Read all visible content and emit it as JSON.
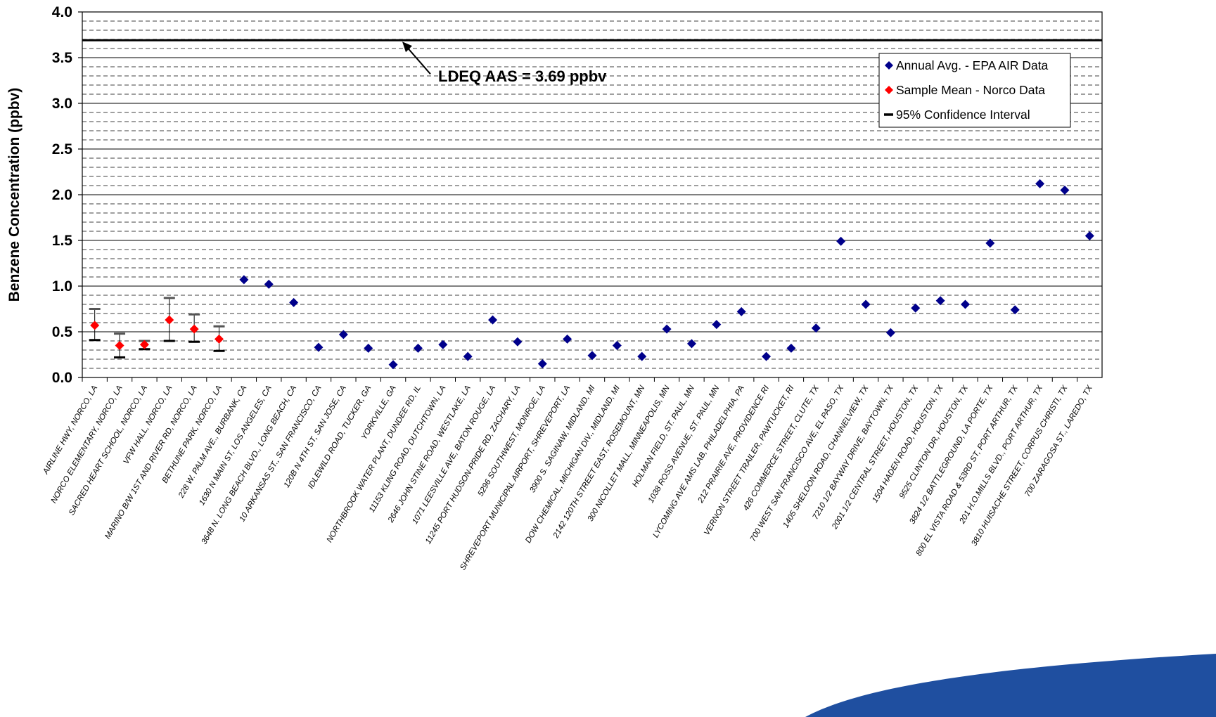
{
  "chart_data": {
    "type": "scatter",
    "ylabel": "Benzene Concentration (ppbv)",
    "ylim": [
      0,
      4
    ],
    "yticks": [
      "0.0",
      "0.5",
      "1.0",
      "1.5",
      "2.0",
      "2.5",
      "3.0",
      "3.5",
      "4.0"
    ],
    "minor_grid": "dashed, every 0.1",
    "major_grid": "solid, every 0.5",
    "legend_position": "top-right",
    "reference_line": {
      "value": 3.69,
      "label": "LDEQ AAS = 3.69 ppbv"
    },
    "legend": [
      {
        "label": "Annual Avg. - EPA AIR Data",
        "marker": "diamond",
        "color": "#00008B"
      },
      {
        "label": "Sample Mean - Norco Data",
        "marker": "diamond",
        "color": "#FF0000"
      },
      {
        "label": "95% Confidence Interval",
        "marker": "dash",
        "color": "#000000"
      }
    ],
    "categories": [
      "AIRLINE HWY, NORCO, LA",
      "NORCO ELEMENTARY, NORCO, LA",
      "SACRED HEART SCHOOL, NORCO, LA",
      "VFW HALL, NORCO, LA",
      "MARINO B/W 1ST AND RIVER RD, NORCO, LA",
      "BETHUNE PARK, NORCO, LA",
      "228 W. PALM AVE., BURBANK, CA",
      "1630 N MAIN ST, LOS ANGELES, CA",
      "3648 N. LONG BEACH BLVD., LONG BEACH, CA",
      "10 ARKANSAS ST., SAN FRANCISCO, CA",
      "120B N 4TH ST, SAN JOSE, CA",
      "IDLEWILD ROAD, TUCKER, GA",
      "YORKVILLE, GA",
      "NORTHBROOK WATER PLANT, DUNDEE RD, IL",
      "11153 KLING ROAD, DUTCHTOWN, LA",
      "2646 JOHN STINE ROAD, WESTLAKE, LA",
      "1071 LEESVILLE AVE, BATON ROUGE, LA",
      "11245 PORT HUDSON-PRIDE RD, ZACHARY, LA",
      "5296 SOUTHWEST, MONROE, LA",
      "SHREVEPORT MUNICIPAL AIRPORT, SHREVEPORT, LA",
      "3900 S. SAGINAW, MIDLAND, MI",
      "DOW CHEMICAL, MICHIGAN DIV., MIDLAND, MI",
      "2142 120TH STREET EAST, ROSEMOUNT, MN",
      "300 NICOLLET MALL, MINNEAPOLIS, MN",
      "HOLMAN FIELD, ST. PAUL, MN",
      "1038 ROSS AVENUE, ST. PAUL, MN",
      "LYCOMING AVE AMS LAB, PHILADELPHIA, PA",
      "212 PRAIRIE AVE, PROVIDENCE RI",
      "VERNON STREET TRAILER, PAWTUCKET, RI",
      "426 COMMERCE STREET, CLUTE, TX",
      "700 WEST SAN FRANCISCO AVE, EL PASO, TX",
      "1405 SHELDON ROAD, CHANNELVIEW, TX",
      "7210 1/2 BAYWAY DRIVE, BAYTOWN, TX",
      "2001 1/2 CENTRAL STREET, HOUSTON, TX",
      "1504 HADEN ROAD, HOUSTON, TX",
      "9525 CLINTON DR, HOUSTON, TX",
      "3824 1/2 BATTLEGROUND, LA PORTE, TX",
      "800 EL VISTA ROAD & 53RD ST, PORT ARTHUR, TX",
      "201 H.O.MILLS BLVD., PORT ARTHUR, TX",
      "3810 HUISACHE STREET, CORPUS CHRISTI, TX",
      "700 ZARAGOSA ST., LAREDO, TX"
    ],
    "series": [
      {
        "name": "Sample Mean - Norco Data",
        "color": "#FF0000",
        "category_index": [
          0,
          1,
          2,
          3,
          4,
          5
        ],
        "values": [
          0.57,
          0.35,
          0.36,
          0.63,
          0.53,
          0.42
        ],
        "ci_low": [
          0.41,
          0.22,
          0.31,
          0.4,
          0.39,
          0.29
        ],
        "ci_high": [
          0.75,
          0.48,
          0.4,
          0.87,
          0.69,
          0.56
        ]
      },
      {
        "name": "Annual Avg. - EPA AIR Data",
        "color": "#00008B",
        "category_index": [
          6,
          7,
          8,
          9,
          10,
          11,
          12,
          13,
          14,
          15,
          16,
          17,
          18,
          19,
          20,
          21,
          22,
          23,
          24,
          25,
          26,
          27,
          28,
          29,
          30,
          31,
          32,
          33,
          34,
          35,
          36,
          37,
          38,
          39,
          40
        ],
        "values": [
          1.07,
          1.02,
          0.82,
          0.33,
          0.47,
          0.32,
          0.14,
          0.32,
          0.36,
          0.23,
          0.63,
          0.39,
          0.15,
          0.42,
          0.24,
          0.35,
          0.23,
          0.53,
          0.37,
          0.58,
          0.72,
          0.23,
          0.32,
          0.54,
          1.49,
          0.8,
          0.49,
          0.76,
          0.84,
          0.8,
          1.47,
          0.74,
          2.12,
          2.05,
          1.55
        ]
      }
    ]
  }
}
